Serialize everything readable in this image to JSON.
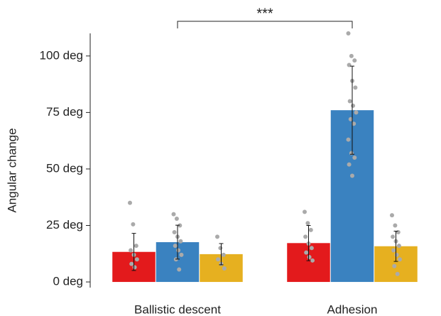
{
  "chart_data": {
    "type": "bar",
    "y_label": "Angular change",
    "annotation": "***",
    "categories": [
      "Ballistic descent",
      "Adhesion"
    ],
    "series": [
      {
        "color": "#e31a1c",
        "values": [
          13.3,
          17.2
        ],
        "errors": [
          8.2,
          7.8
        ],
        "points": [
          [
            35,
            25.5,
            16,
            14,
            12,
            10,
            8,
            6.5
          ],
          [
            31,
            26,
            23,
            20,
            17,
            15,
            13,
            11,
            9.5
          ]
        ]
      },
      {
        "color": "#3a82c0",
        "values": [
          17.6,
          76
        ],
        "errors": [
          7.5,
          19.5
        ],
        "points": [
          [
            30,
            28,
            25,
            22,
            20,
            18,
            16,
            14,
            12,
            10,
            5.5
          ],
          [
            110,
            100,
            98,
            96,
            89,
            86,
            80,
            78,
            75,
            72,
            70,
            63,
            57,
            55,
            52,
            47
          ]
        ]
      },
      {
        "color": "#e6b020",
        "values": [
          12.3,
          15.8
        ],
        "errors": [
          4.7,
          6.7
        ],
        "points": [
          [
            20,
            15,
            12,
            10,
            8,
            6
          ],
          [
            29.5,
            25,
            22,
            20,
            18,
            16,
            14,
            12,
            10,
            7,
            3.5
          ]
        ]
      }
    ],
    "ylim": [
      -2.5,
      110
    ],
    "yticks": [
      {
        "value": 0,
        "label": "0 deg"
      },
      {
        "value": 25,
        "label": "25 deg"
      },
      {
        "value": 50,
        "label": "50 deg"
      },
      {
        "value": 75,
        "label": "75 deg"
      },
      {
        "value": 100,
        "label": "100 deg"
      }
    ]
  }
}
